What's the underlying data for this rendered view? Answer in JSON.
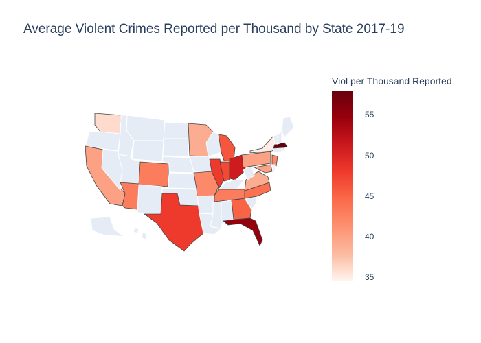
{
  "title": "Average Violent Crimes Reported per Thousand by State 2017-19",
  "colorbar": {
    "title": "Viol per Thousand Reported",
    "min": 34.5,
    "max": 58,
    "ticks": [
      "35",
      "40",
      "45",
      "50",
      "55"
    ],
    "tick_values": [
      35,
      40,
      45,
      50,
      55
    ],
    "colorscale": [
      "#fff5f0",
      "#fcbba1",
      "#fc9272",
      "#fb6a4a",
      "#ef3b2c",
      "#cb181d",
      "#99000d",
      "#67000d"
    ]
  },
  "colors": {
    "no_data": "#e5ecf6",
    "border": "#ffffff"
  },
  "map_data": [
    {
      "state": "WA",
      "value": 36
    },
    {
      "state": "CA",
      "value": 40
    },
    {
      "state": "AZ",
      "value": 43
    },
    {
      "state": "CO",
      "value": 43
    },
    {
      "state": "TX",
      "value": 48
    },
    {
      "state": "MN",
      "value": 39
    },
    {
      "state": "MO",
      "value": 42
    },
    {
      "state": "IL",
      "value": 48
    },
    {
      "state": "MI",
      "value": 46
    },
    {
      "state": "IN",
      "value": 47
    },
    {
      "state": "OH",
      "value": 51
    },
    {
      "state": "TN",
      "value": 43
    },
    {
      "state": "GA",
      "value": 45
    },
    {
      "state": "FL",
      "value": 55
    },
    {
      "state": "NC",
      "value": 44
    },
    {
      "state": "VA",
      "value": 39
    },
    {
      "state": "PA",
      "value": 40
    },
    {
      "state": "NY",
      "value": 35
    },
    {
      "state": "NJ",
      "value": 42
    },
    {
      "state": "MD",
      "value": 40
    },
    {
      "state": "MA",
      "value": 58
    }
  ]
}
